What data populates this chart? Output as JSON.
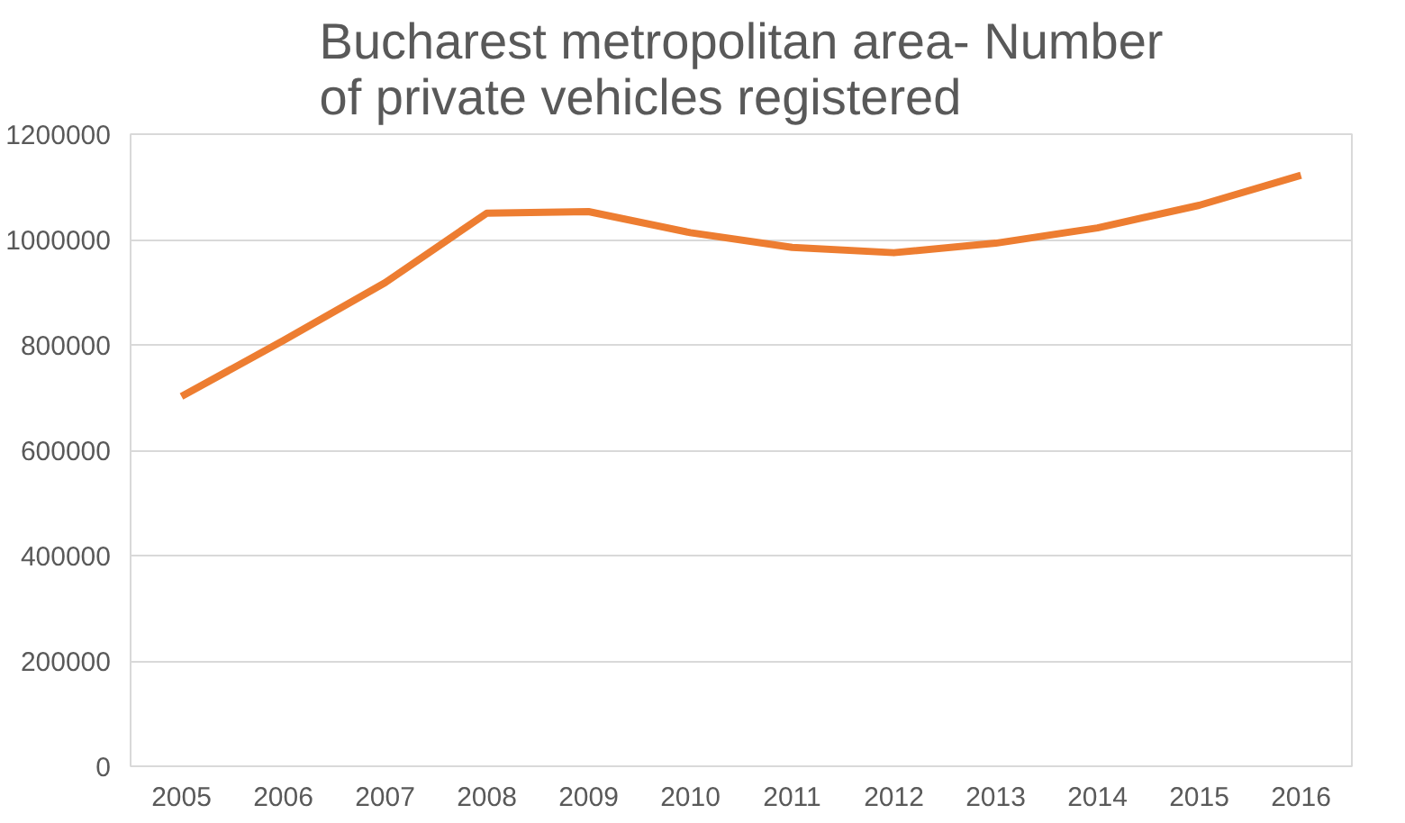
{
  "chart_data": {
    "type": "line",
    "title": "Bucharest metropolitan area- Number\nof private vehicles registered",
    "categories": [
      "2005",
      "2006",
      "2007",
      "2008",
      "2009",
      "2010",
      "2011",
      "2012",
      "2013",
      "2014",
      "2015",
      "2016"
    ],
    "series": [
      {
        "color": "#ed7d31",
        "values": [
          702000,
          808000,
          918000,
          1050000,
          1053000,
          1013000,
          985000,
          975000,
          993000,
          1022000,
          1065000,
          1122000
        ]
      }
    ],
    "ylim": [
      0,
      1200000
    ],
    "yticks": [
      0,
      200000,
      400000,
      600000,
      800000,
      1000000,
      1200000
    ],
    "grid": "y",
    "marker": "none",
    "line_style": "solid"
  }
}
